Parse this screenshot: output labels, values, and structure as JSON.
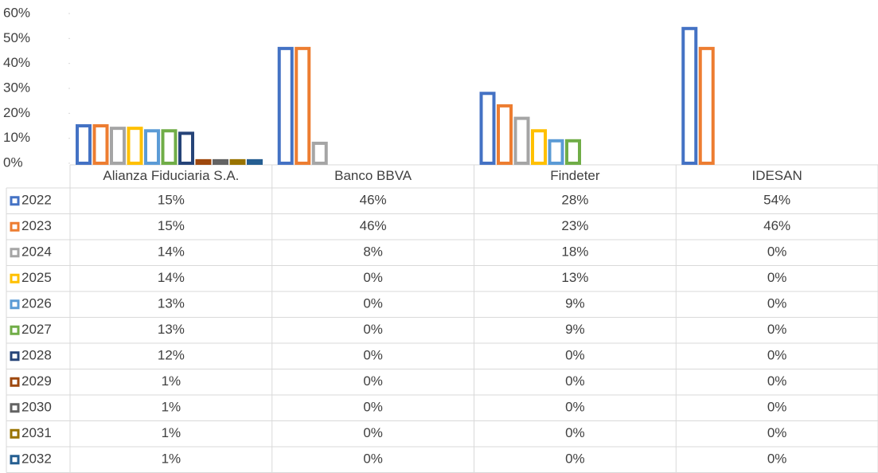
{
  "chart_data": {
    "type": "bar",
    "categories": [
      "Alianza Fiduciaria S.A.",
      "Banco BBVA",
      "Findeter",
      "IDESAN"
    ],
    "series": [
      {
        "name": "2022",
        "color": "#4472c4",
        "values": [
          15,
          46,
          28,
          54
        ],
        "value_labels": [
          "15%",
          "46%",
          "28%",
          "54%"
        ]
      },
      {
        "name": "2023",
        "color": "#ed7d31",
        "values": [
          15,
          46,
          23,
          46
        ],
        "value_labels": [
          "15%",
          "46%",
          "23%",
          "46%"
        ]
      },
      {
        "name": "2024",
        "color": "#a5a5a5",
        "values": [
          14,
          8,
          18,
          0
        ],
        "value_labels": [
          "14%",
          "8%",
          "18%",
          "0%"
        ]
      },
      {
        "name": "2025",
        "color": "#ffc000",
        "values": [
          14,
          0,
          13,
          0
        ],
        "value_labels": [
          "14%",
          "0%",
          "13%",
          "0%"
        ]
      },
      {
        "name": "2026",
        "color": "#5b9bd5",
        "values": [
          13,
          0,
          9,
          0
        ],
        "value_labels": [
          "13%",
          "0%",
          "9%",
          "0%"
        ]
      },
      {
        "name": "2027",
        "color": "#70ad47",
        "values": [
          13,
          0,
          9,
          0
        ],
        "value_labels": [
          "13%",
          "0%",
          "9%",
          "0%"
        ]
      },
      {
        "name": "2028",
        "color": "#264478",
        "values": [
          12,
          0,
          0,
          0
        ],
        "value_labels": [
          "12%",
          "0%",
          "0%",
          "0%"
        ]
      },
      {
        "name": "2029",
        "color": "#9e480e",
        "values": [
          1,
          0,
          0,
          0
        ],
        "value_labels": [
          "1%",
          "0%",
          "0%",
          "0%"
        ]
      },
      {
        "name": "2030",
        "color": "#636363",
        "values": [
          1,
          0,
          0,
          0
        ],
        "value_labels": [
          "1%",
          "0%",
          "0%",
          "0%"
        ]
      },
      {
        "name": "2031",
        "color": "#997300",
        "values": [
          1,
          0,
          0,
          0
        ],
        "value_labels": [
          "1%",
          "0%",
          "0%",
          "0%"
        ]
      },
      {
        "name": "2032",
        "color": "#255e91",
        "values": [
          1,
          0,
          0,
          0
        ],
        "value_labels": [
          "1%",
          "0%",
          "0%",
          "0%"
        ]
      }
    ],
    "ylim": [
      0,
      60
    ],
    "yticks": [
      {
        "value": 0,
        "label": "0%"
      },
      {
        "value": 10,
        "label": "10%"
      },
      {
        "value": 20,
        "label": "20%"
      },
      {
        "value": 30,
        "label": "30%"
      },
      {
        "value": 40,
        "label": "40%"
      },
      {
        "value": 50,
        "label": "50%"
      },
      {
        "value": 60,
        "label": "60%"
      }
    ],
    "bar_style": "hollow"
  }
}
